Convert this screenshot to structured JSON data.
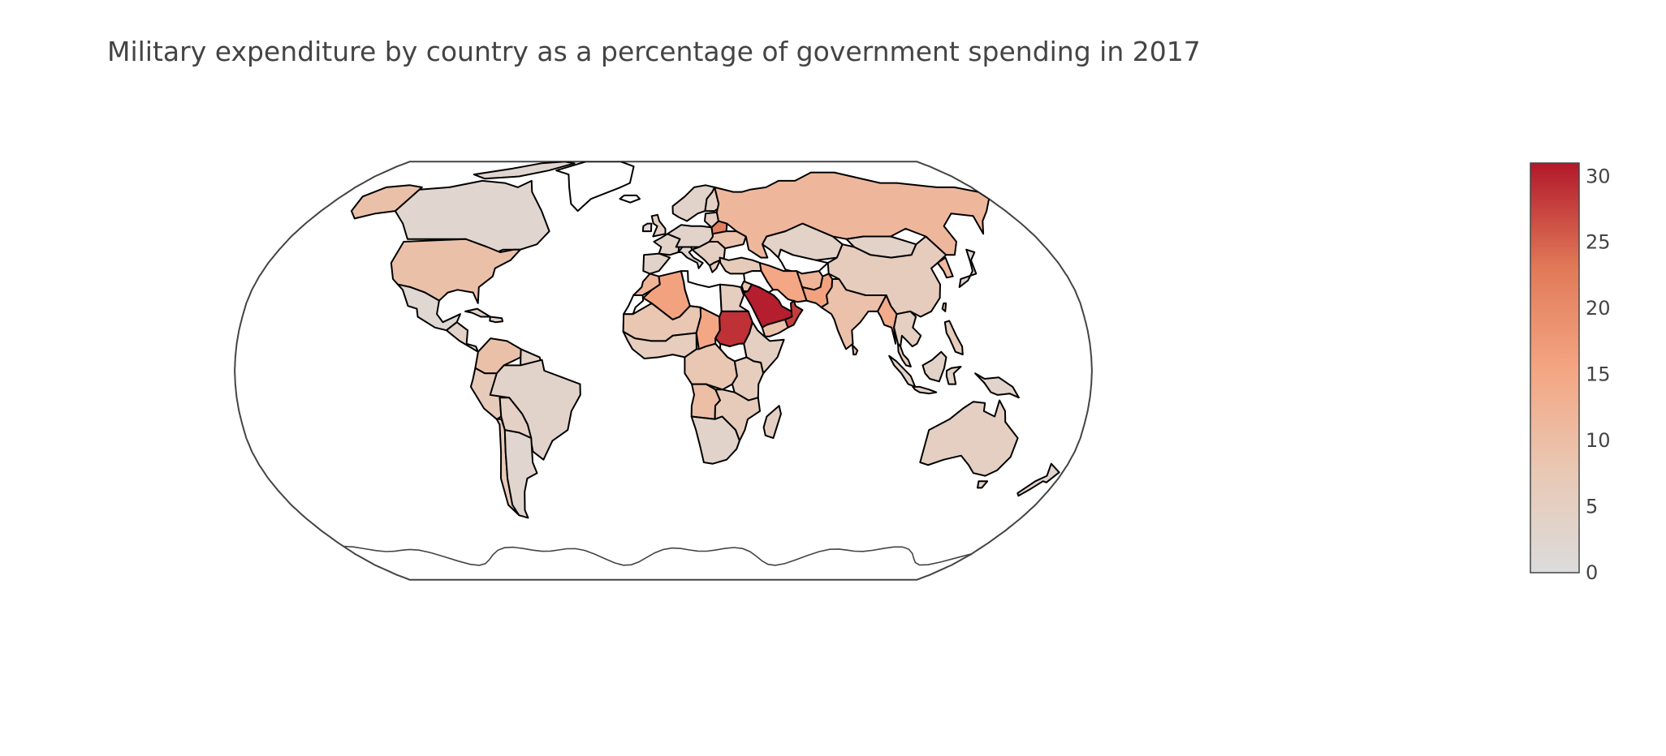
{
  "title": "Military expenditure by country as a percentage of government spending in 2017",
  "colorbar": {
    "min": 0,
    "max": 31,
    "ticks": [
      "0",
      "5",
      "10",
      "15",
      "20",
      "25",
      "30"
    ],
    "colorscale": [
      "#dcdcdc",
      "#e9c8b4",
      "#f4a582",
      "#e07857",
      "#b2182b"
    ]
  },
  "chart_data": {
    "type": "choropleth",
    "title": "Military expenditure by country as a percentage of government spending in 2017",
    "projection": "robinson",
    "z_range": [
      0,
      31
    ],
    "approximate_values_by_region": [
      {
        "name": "Saudi Arabia",
        "value": 30.5
      },
      {
        "name": "Sudan",
        "value": 29
      },
      {
        "name": "Oman",
        "value": 28
      },
      {
        "name": "Belarus",
        "value": 22
      },
      {
        "name": "Algeria",
        "value": 16
      },
      {
        "name": "Iran",
        "value": 15
      },
      {
        "name": "Pakistan",
        "value": 16
      },
      {
        "name": "Chad",
        "value": 15
      },
      {
        "name": "Myanmar",
        "value": 14
      },
      {
        "name": "Russia",
        "value": 11.5
      },
      {
        "name": "United States",
        "value": 9.5
      },
      {
        "name": "India",
        "value": 9.2
      },
      {
        "name": "Colombia",
        "value": 9.5
      },
      {
        "name": "Angola",
        "value": 10
      },
      {
        "name": "China",
        "value": 6.1
      },
      {
        "name": "Australia",
        "value": 5
      },
      {
        "name": "Canada",
        "value": 2.5
      },
      {
        "name": "Brazil",
        "value": 3.5
      },
      {
        "name": "Argentina",
        "value": 2.5
      },
      {
        "name": "Mexico",
        "value": 2
      },
      {
        "name": "South Africa",
        "value": 3.5
      },
      {
        "name": "Western Europe",
        "value": 3
      }
    ]
  }
}
